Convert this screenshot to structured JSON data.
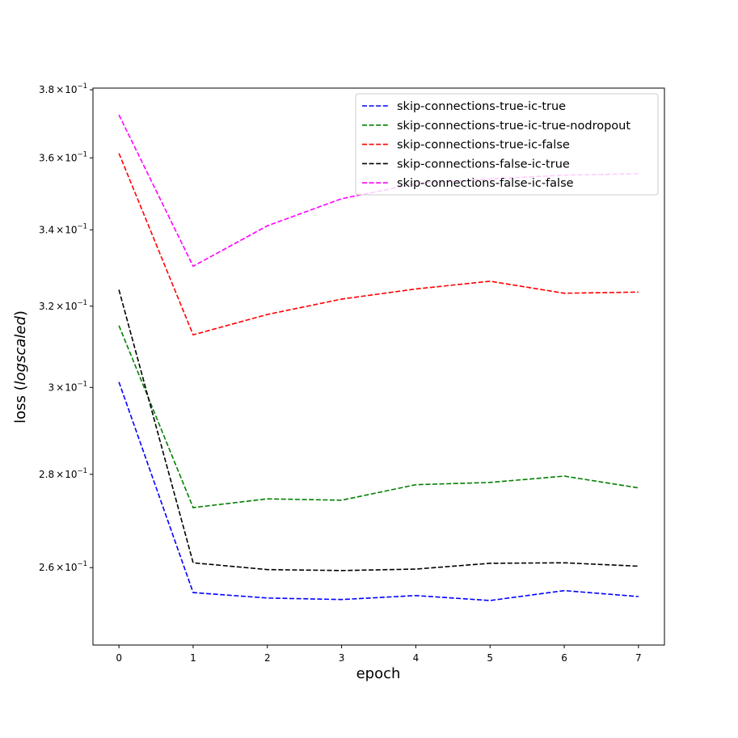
{
  "chart_data": {
    "type": "line",
    "title": "",
    "xlabel": "epoch",
    "ylabel_prefix": "loss (",
    "ylabel_italic": "logscaled",
    "ylabel_suffix": ")",
    "yscale": "log",
    "xlim": [
      -0.35,
      7.35
    ],
    "ylim": [
      0.2445,
      0.3805
    ],
    "grid": false,
    "legend_position": "top-right",
    "x": [
      0,
      1,
      2,
      3,
      4,
      5,
      6,
      7
    ],
    "x_ticks": [
      {
        "value": 0,
        "label": "0"
      },
      {
        "value": 1,
        "label": "1"
      },
      {
        "value": 2,
        "label": "2"
      },
      {
        "value": 3,
        "label": "3"
      },
      {
        "value": 4,
        "label": "4"
      },
      {
        "value": 5,
        "label": "5"
      },
      {
        "value": 6,
        "label": "6"
      },
      {
        "value": 7,
        "label": "7"
      }
    ],
    "y_ticks": [
      {
        "value": 0.26,
        "mantissa": "2.6",
        "times": "×",
        "base": "10",
        "exp": "−1"
      },
      {
        "value": 0.28,
        "mantissa": "2.8",
        "times": "×",
        "base": "10",
        "exp": "−1"
      },
      {
        "value": 0.3,
        "mantissa": "3",
        "times": "×",
        "base": "10",
        "exp": "−1"
      },
      {
        "value": 0.32,
        "mantissa": "3.2",
        "times": "×",
        "base": "10",
        "exp": "−1"
      },
      {
        "value": 0.34,
        "mantissa": "3.4",
        "times": "×",
        "base": "10",
        "exp": "−1"
      },
      {
        "value": 0.36,
        "mantissa": "3.6",
        "times": "×",
        "base": "10",
        "exp": "−1"
      },
      {
        "value": 0.38,
        "mantissa": "3.8",
        "times": "×",
        "base": "10",
        "exp": "−1"
      }
    ],
    "series": [
      {
        "name": "skip-connections-true-ic-true",
        "color": "#0000ff",
        "values": [
          0.3013,
          0.2549,
          0.2538,
          0.2535,
          0.2543,
          0.2533,
          0.2553,
          0.2541
        ]
      },
      {
        "name": "skip-connections-true-ic-true-nodropout",
        "color": "#008000",
        "values": [
          0.3151,
          0.2727,
          0.2746,
          0.2743,
          0.2777,
          0.2782,
          0.2796,
          0.277
        ]
      },
      {
        "name": "skip-connections-true-ic-false",
        "color": "#ff0000",
        "values": [
          0.3613,
          0.3128,
          0.3179,
          0.3218,
          0.3244,
          0.3264,
          0.3233,
          0.3236
        ]
      },
      {
        "name": "skip-connections-false-ic-true",
        "color": "#000000",
        "values": [
          0.3242,
          0.261,
          0.2596,
          0.2594,
          0.2597,
          0.2609,
          0.261,
          0.2603
        ]
      },
      {
        "name": "skip-connections-false-ic-false",
        "color": "#ff00ff",
        "values": [
          0.3725,
          0.3303,
          0.3411,
          0.3485,
          0.3527,
          0.354,
          0.3551,
          0.3555
        ]
      }
    ]
  }
}
